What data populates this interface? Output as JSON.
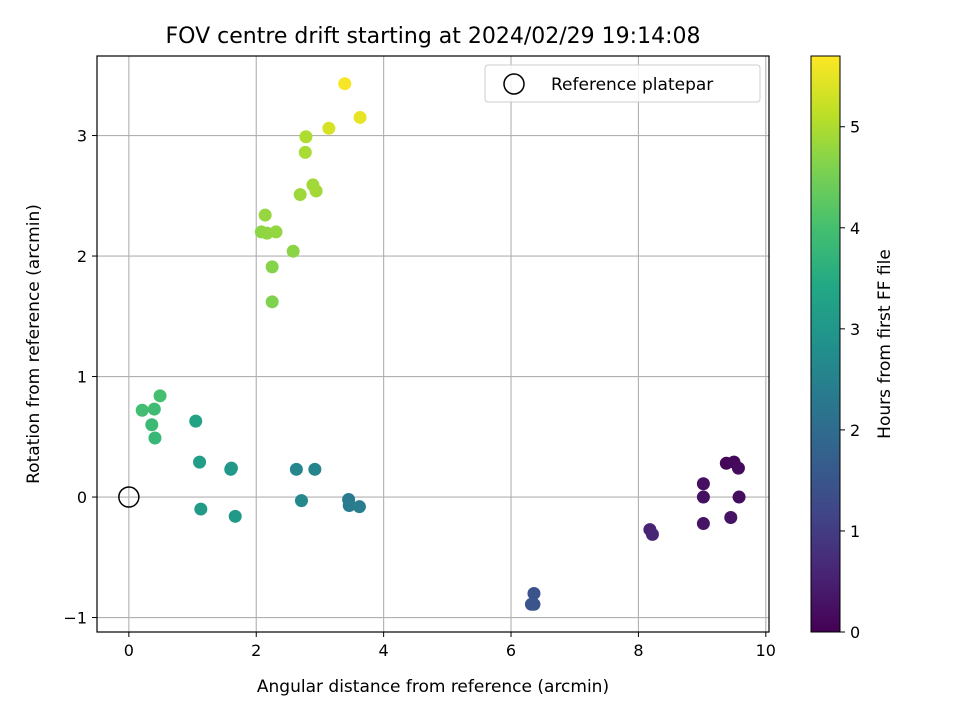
{
  "chart_data": {
    "type": "scatter",
    "title": "FOV centre drift starting at 2024/02/29 19:14:08",
    "xlabel": "Angular distance from reference (arcmin)",
    "ylabel": "Rotation from reference (arcmin)",
    "xlim": [
      -0.5,
      10.05
    ],
    "ylim": [
      -1.12,
      3.66
    ],
    "xticks": [
      0,
      2,
      4,
      6,
      8,
      10
    ],
    "yticks": [
      -1,
      0,
      1,
      2,
      3
    ],
    "grid": true,
    "legend": {
      "entries": [
        "Reference platepar"
      ],
      "placement": "top-right"
    },
    "colorbar": {
      "label": "Hours from first FF file",
      "range": [
        0,
        5.7
      ],
      "ticks": [
        0,
        1,
        2,
        3,
        4,
        5
      ],
      "colormap": "viridis"
    },
    "reference_point": {
      "x": 0,
      "y": 0,
      "label": "Reference platepar"
    },
    "points": [
      {
        "x": 9.38,
        "y": 0.28,
        "c": 0.05
      },
      {
        "x": 9.5,
        "y": 0.29,
        "c": 0.1
      },
      {
        "x": 9.57,
        "y": 0.24,
        "c": 0.15
      },
      {
        "x": 9.58,
        "y": 0.0,
        "c": 0.2
      },
      {
        "x": 9.02,
        "y": 0.11,
        "c": 0.22
      },
      {
        "x": 9.02,
        "y": 0.0,
        "c": 0.25
      },
      {
        "x": 9.45,
        "y": -0.17,
        "c": 0.28
      },
      {
        "x": 9.02,
        "y": -0.22,
        "c": 0.3
      },
      {
        "x": 8.18,
        "y": -0.27,
        "c": 0.55
      },
      {
        "x": 8.22,
        "y": -0.31,
        "c": 0.6
      },
      {
        "x": 6.36,
        "y": -0.8,
        "c": 1.45
      },
      {
        "x": 6.36,
        "y": -0.89,
        "c": 1.48
      },
      {
        "x": 6.32,
        "y": -0.89,
        "c": 1.5
      },
      {
        "x": 3.45,
        "y": -0.02,
        "c": 2.3
      },
      {
        "x": 3.46,
        "y": -0.07,
        "c": 2.35
      },
      {
        "x": 3.62,
        "y": -0.08,
        "c": 2.4
      },
      {
        "x": 2.92,
        "y": 0.23,
        "c": 2.55
      },
      {
        "x": 2.63,
        "y": 0.23,
        "c": 2.6
      },
      {
        "x": 2.71,
        "y": -0.03,
        "c": 2.65
      },
      {
        "x": 1.6,
        "y": 0.23,
        "c": 3.0
      },
      {
        "x": 1.61,
        "y": 0.24,
        "c": 3.02
      },
      {
        "x": 1.67,
        "y": -0.16,
        "c": 3.05
      },
      {
        "x": 1.13,
        "y": -0.1,
        "c": 3.1
      },
      {
        "x": 1.11,
        "y": 0.29,
        "c": 3.15
      },
      {
        "x": 1.05,
        "y": 0.63,
        "c": 3.3
      },
      {
        "x": 0.41,
        "y": 0.49,
        "c": 3.8
      },
      {
        "x": 0.36,
        "y": 0.6,
        "c": 3.85
      },
      {
        "x": 0.4,
        "y": 0.73,
        "c": 3.9
      },
      {
        "x": 0.21,
        "y": 0.72,
        "c": 3.95
      },
      {
        "x": 0.49,
        "y": 0.84,
        "c": 4.0
      },
      {
        "x": 2.25,
        "y": 1.62,
        "c": 4.6
      },
      {
        "x": 2.25,
        "y": 1.91,
        "c": 4.65
      },
      {
        "x": 2.58,
        "y": 2.04,
        "c": 4.7
      },
      {
        "x": 2.08,
        "y": 2.2,
        "c": 4.72
      },
      {
        "x": 2.17,
        "y": 2.19,
        "c": 4.75
      },
      {
        "x": 2.31,
        "y": 2.2,
        "c": 4.78
      },
      {
        "x": 2.14,
        "y": 2.34,
        "c": 4.8
      },
      {
        "x": 2.69,
        "y": 2.51,
        "c": 4.85
      },
      {
        "x": 2.89,
        "y": 2.59,
        "c": 4.88
      },
      {
        "x": 2.94,
        "y": 2.54,
        "c": 4.9
      },
      {
        "x": 2.77,
        "y": 2.86,
        "c": 4.95
      },
      {
        "x": 2.78,
        "y": 2.99,
        "c": 5.0
      },
      {
        "x": 3.14,
        "y": 3.06,
        "c": 5.35
      },
      {
        "x": 3.63,
        "y": 3.15,
        "c": 5.5
      },
      {
        "x": 3.39,
        "y": 3.43,
        "c": 5.65
      }
    ]
  }
}
